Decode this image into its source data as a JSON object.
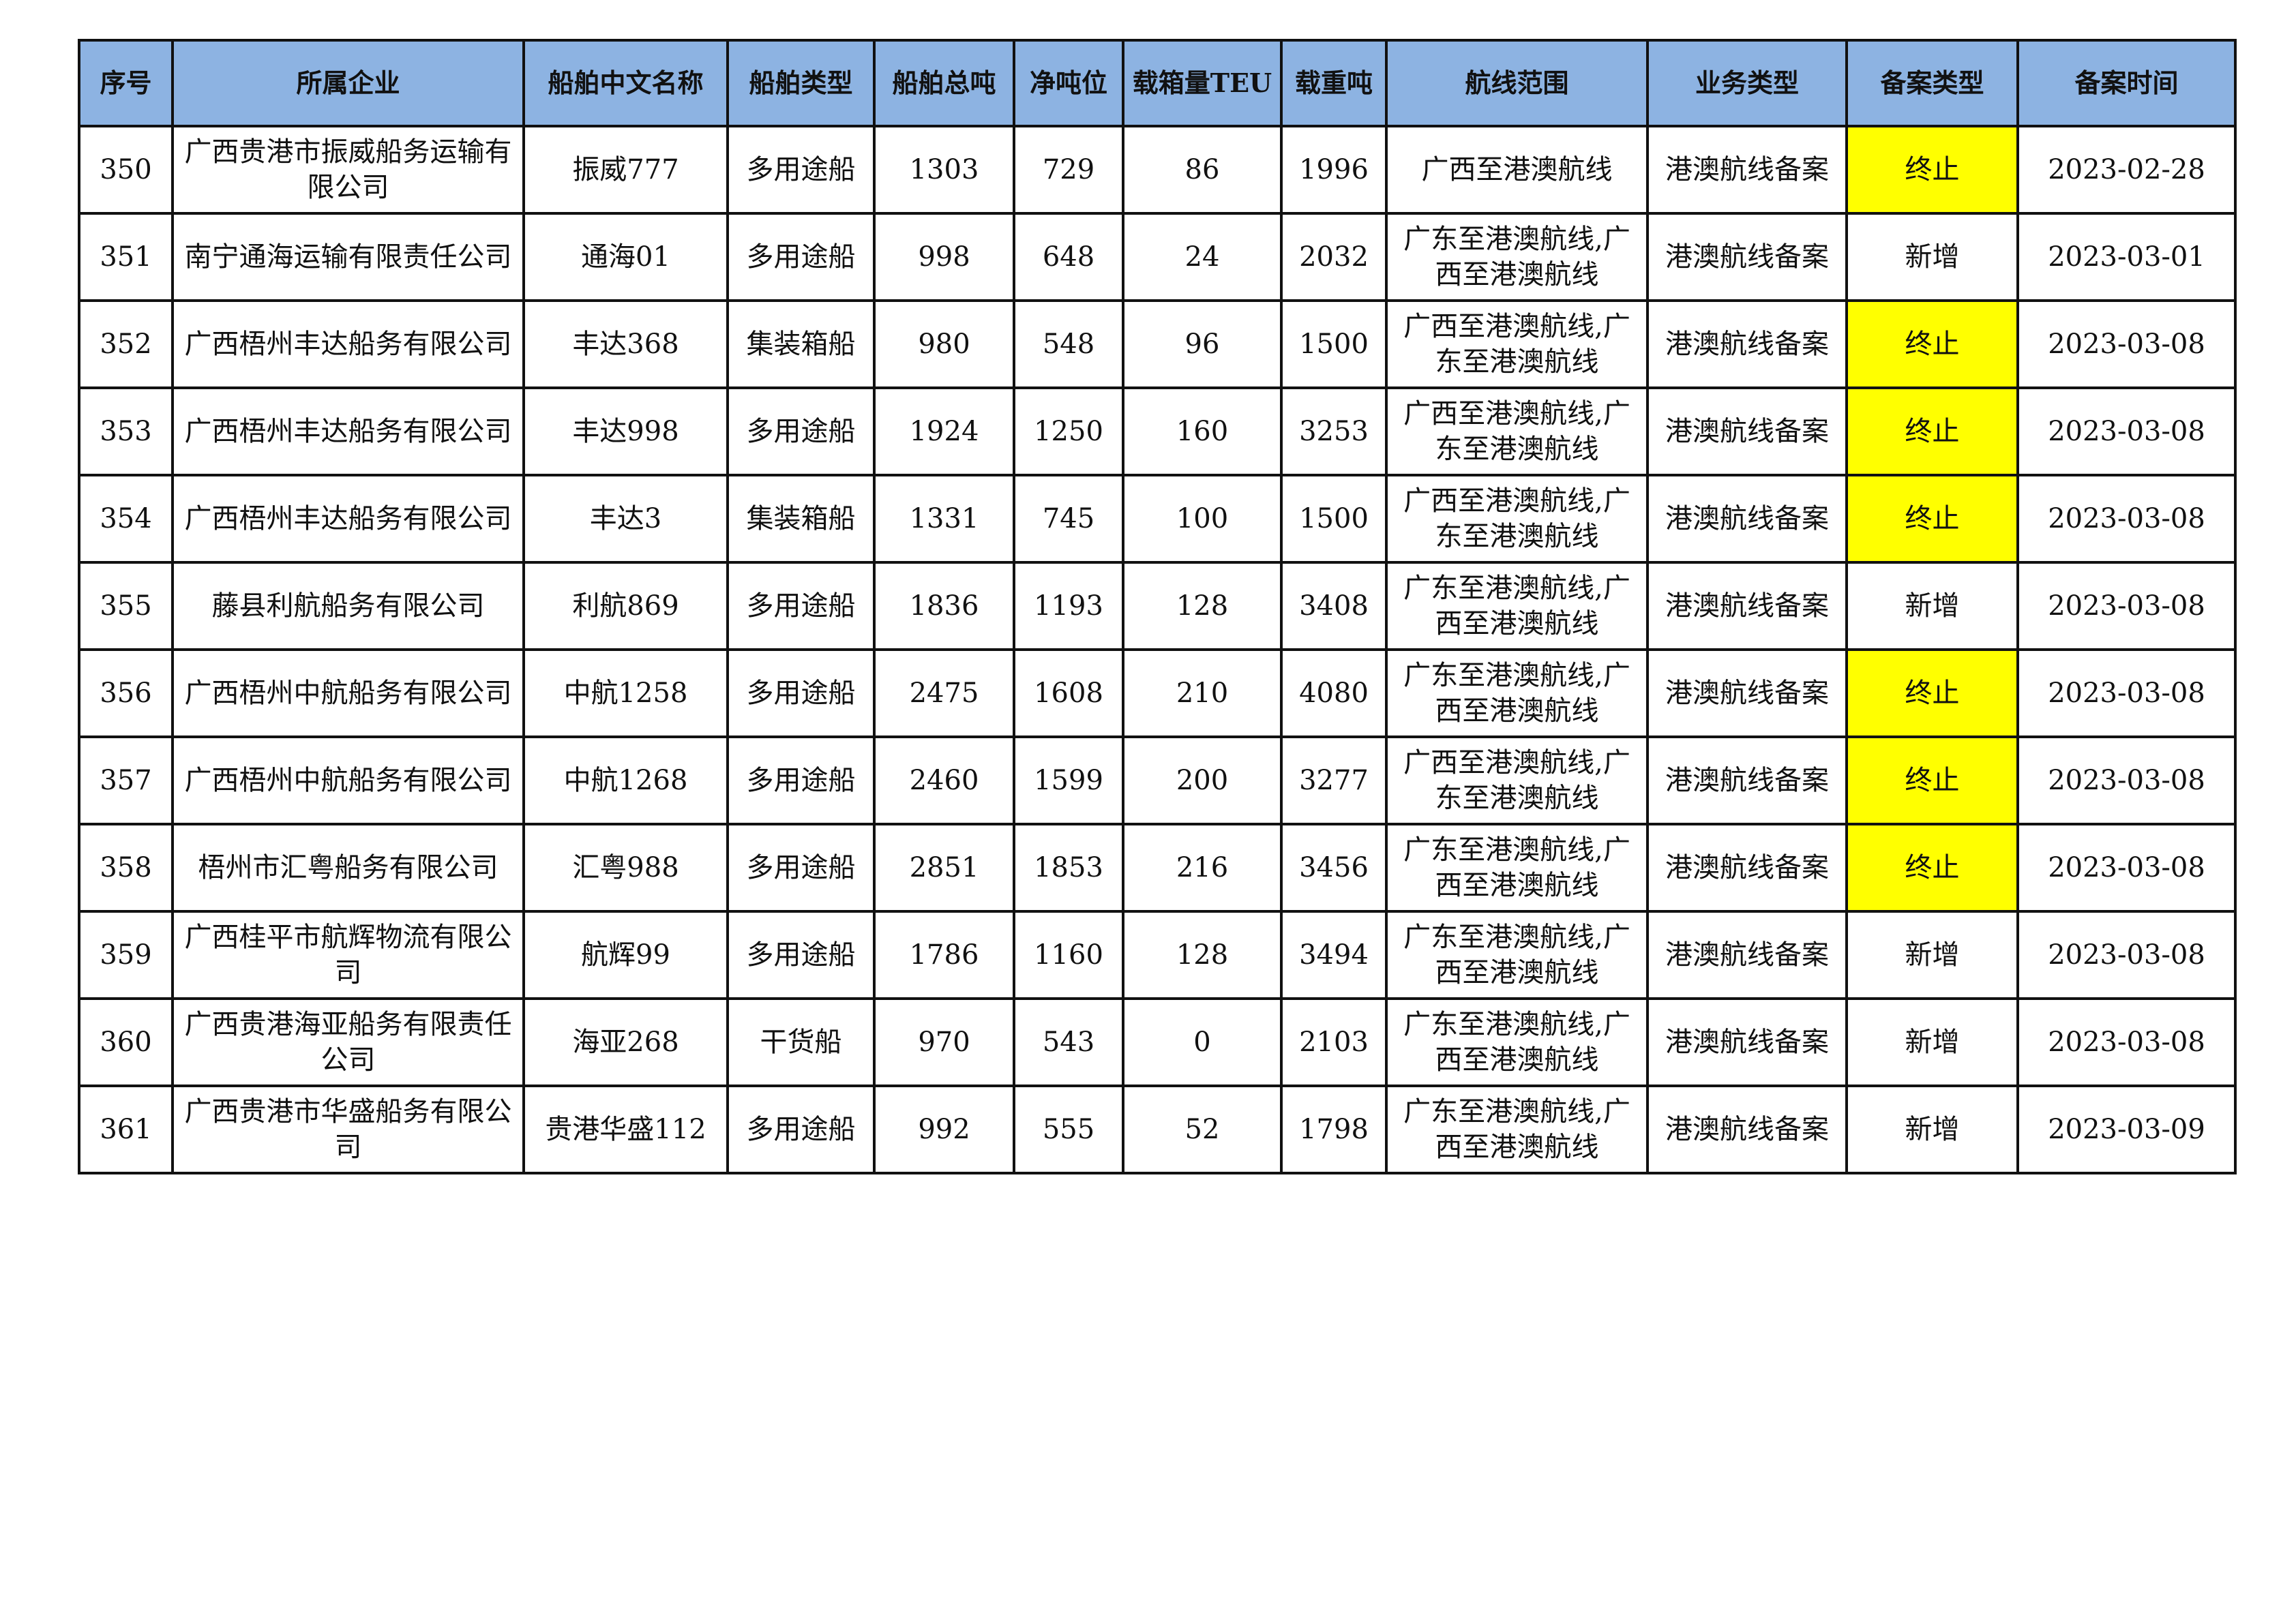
{
  "colors": {
    "header_bg": "#8db3e2",
    "highlight_bg": "#ffff00"
  },
  "table": {
    "headers": [
      "序号",
      "所属企业",
      "船舶中文名称",
      "船舶类型",
      "船舶总吨",
      "净吨位",
      "载箱量TEU",
      "载重吨",
      "航线范围",
      "业务类型",
      "备案类型",
      "备案时间"
    ],
    "rows": [
      [
        "350",
        "广西贵港市振威船务运输有限公司",
        "振威777",
        "多用途船",
        "1303",
        "729",
        "86",
        "1996",
        "广西至港澳航线",
        "港澳航线备案",
        "终止",
        "2023-02-28"
      ],
      [
        "351",
        "南宁通海运输有限责任公司",
        "通海01",
        "多用途船",
        "998",
        "648",
        "24",
        "2032",
        "广东至港澳航线,广西至港澳航线",
        "港澳航线备案",
        "新增",
        "2023-03-01"
      ],
      [
        "352",
        "广西梧州丰达船务有限公司",
        "丰达368",
        "集装箱船",
        "980",
        "548",
        "96",
        "1500",
        "广西至港澳航线,广东至港澳航线",
        "港澳航线备案",
        "终止",
        "2023-03-08"
      ],
      [
        "353",
        "广西梧州丰达船务有限公司",
        "丰达998",
        "多用途船",
        "1924",
        "1250",
        "160",
        "3253",
        "广西至港澳航线,广东至港澳航线",
        "港澳航线备案",
        "终止",
        "2023-03-08"
      ],
      [
        "354",
        "广西梧州丰达船务有限公司",
        "丰达3",
        "集装箱船",
        "1331",
        "745",
        "100",
        "1500",
        "广西至港澳航线,广东至港澳航线",
        "港澳航线备案",
        "终止",
        "2023-03-08"
      ],
      [
        "355",
        "藤县利航船务有限公司",
        "利航869",
        "多用途船",
        "1836",
        "1193",
        "128",
        "3408",
        "广东至港澳航线,广西至港澳航线",
        "港澳航线备案",
        "新增",
        "2023-03-08"
      ],
      [
        "356",
        "广西梧州中航船务有限公司",
        "中航1258",
        "多用途船",
        "2475",
        "1608",
        "210",
        "4080",
        "广东至港澳航线,广西至港澳航线",
        "港澳航线备案",
        "终止",
        "2023-03-08"
      ],
      [
        "357",
        "广西梧州中航船务有限公司",
        "中航1268",
        "多用途船",
        "2460",
        "1599",
        "200",
        "3277",
        "广西至港澳航线,广东至港澳航线",
        "港澳航线备案",
        "终止",
        "2023-03-08"
      ],
      [
        "358",
        "梧州市汇粤船务有限公司",
        "汇粤988",
        "多用途船",
        "2851",
        "1853",
        "216",
        "3456",
        "广东至港澳航线,广西至港澳航线",
        "港澳航线备案",
        "终止",
        "2023-03-08"
      ],
      [
        "359",
        "广西桂平市航辉物流有限公司",
        "航辉99",
        "多用途船",
        "1786",
        "1160",
        "128",
        "3494",
        "广东至港澳航线,广西至港澳航线",
        "港澳航线备案",
        "新增",
        "2023-03-08"
      ],
      [
        "360",
        "广西贵港海亚船务有限责任公司",
        "海亚268",
        "干货船",
        "970",
        "543",
        "0",
        "2103",
        "广东至港澳航线,广西至港澳航线",
        "港澳航线备案",
        "新增",
        "2023-03-08"
      ],
      [
        "361",
        "广西贵港市华盛船务有限公司",
        "贵港华盛112",
        "多用途船",
        "992",
        "555",
        "52",
        "1798",
        "广东至港澳航线,广西至港澳航线",
        "港澳航线备案",
        "新增",
        "2023-03-09"
      ]
    ],
    "highlighted_value": "终止"
  }
}
